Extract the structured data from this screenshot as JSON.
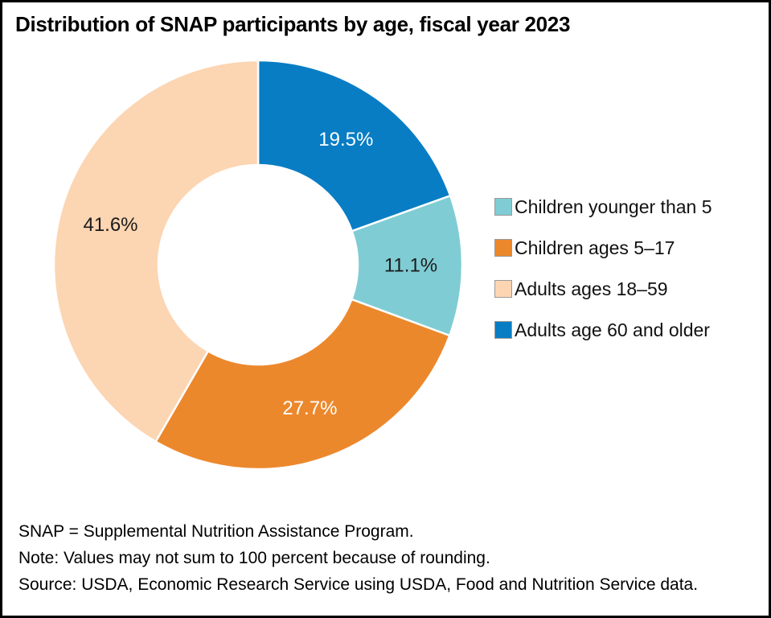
{
  "title": "Distribution of SNAP participants by age, fiscal year 2023",
  "chart_data": {
    "type": "pie",
    "subtype": "donut",
    "title": "Distribution of SNAP participants by age, fiscal year 2023",
    "start_angle_deg": 0,
    "direction": "clockwise",
    "inner_radius_ratio": 0.49,
    "units": "percent",
    "segments": [
      {
        "label": "Adults age 60 and older",
        "value": 19.5,
        "display": "19.5%",
        "color": "#087dc4",
        "label_color": "#ffffff"
      },
      {
        "label": "Children younger than 5",
        "value": 11.1,
        "display": "11.1%",
        "color": "#7fccd4",
        "label_color": "#1a1a1a"
      },
      {
        "label": "Children ages 5–17",
        "value": 27.7,
        "display": "27.7%",
        "color": "#ec882c",
        "label_color": "#ffffff"
      },
      {
        "label": "Adults ages 18–59",
        "value": 41.6,
        "display": "41.6%",
        "color": "#fcd5b2",
        "label_color": "#1a1a1a"
      }
    ],
    "legend": {
      "position": "right",
      "items": [
        {
          "label": "Children younger than 5",
          "color": "#7fccd4"
        },
        {
          "label": "Children ages 5–17",
          "color": "#ec882c"
        },
        {
          "label": "Adults ages 18–59",
          "color": "#fcd5b2"
        },
        {
          "label": "Adults age 60 and older",
          "color": "#087dc4"
        }
      ]
    }
  },
  "notes": {
    "line1": "SNAP = Supplemental Nutrition Assistance Program.",
    "line2": "Note: Values may not sum to 100 percent because of rounding.",
    "line3": "Source: USDA, Economic Research Service using USDA, Food and Nutrition Service data."
  }
}
